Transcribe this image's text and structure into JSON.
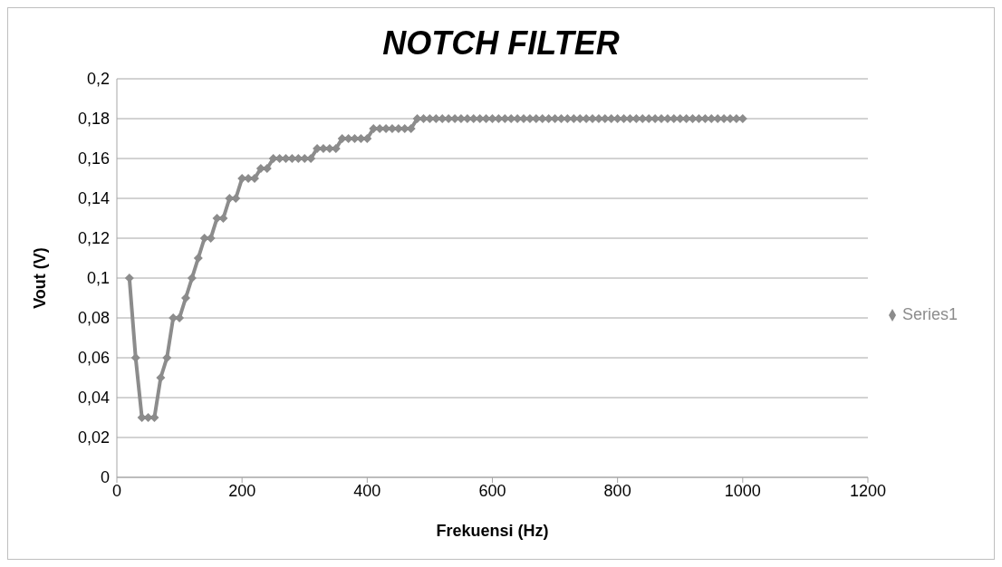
{
  "chart_data": {
    "type": "line",
    "title": "NOTCH FILTER",
    "xlabel": "Frekuensi (Hz)",
    "ylabel": "Vout (V)",
    "x": [
      20,
      30,
      40,
      50,
      60,
      70,
      80,
      90,
      100,
      110,
      120,
      130,
      140,
      150,
      160,
      170,
      180,
      190,
      200,
      210,
      220,
      230,
      240,
      250,
      260,
      270,
      280,
      290,
      300,
      310,
      320,
      330,
      340,
      350,
      360,
      370,
      380,
      390,
      400,
      410,
      420,
      430,
      440,
      450,
      460,
      470,
      480,
      490,
      500,
      510,
      520,
      530,
      540,
      550,
      560,
      570,
      580,
      590,
      600,
      610,
      620,
      630,
      640,
      650,
      660,
      670,
      680,
      690,
      700,
      710,
      720,
      730,
      740,
      750,
      760,
      770,
      780,
      790,
      800,
      810,
      820,
      830,
      840,
      850,
      860,
      870,
      880,
      890,
      900,
      910,
      920,
      930,
      940,
      950,
      960,
      970,
      980,
      990,
      1000
    ],
    "series": [
      {
        "name": "Series1",
        "color": "#8c8c8c",
        "values": [
          0.1,
          0.06,
          0.03,
          0.03,
          0.03,
          0.05,
          0.06,
          0.08,
          0.08,
          0.09,
          0.1,
          0.11,
          0.12,
          0.12,
          0.13,
          0.13,
          0.14,
          0.14,
          0.15,
          0.15,
          0.15,
          0.155,
          0.155,
          0.16,
          0.16,
          0.16,
          0.16,
          0.16,
          0.16,
          0.16,
          0.165,
          0.165,
          0.165,
          0.165,
          0.17,
          0.17,
          0.17,
          0.17,
          0.17,
          0.175,
          0.175,
          0.175,
          0.175,
          0.175,
          0.175,
          0.175,
          0.18,
          0.18,
          0.18,
          0.18,
          0.18,
          0.18,
          0.18,
          0.18,
          0.18,
          0.18,
          0.18,
          0.18,
          0.18,
          0.18,
          0.18,
          0.18,
          0.18,
          0.18,
          0.18,
          0.18,
          0.18,
          0.18,
          0.18,
          0.18,
          0.18,
          0.18,
          0.18,
          0.18,
          0.18,
          0.18,
          0.18,
          0.18,
          0.18,
          0.18,
          0.18,
          0.18,
          0.18,
          0.18,
          0.18,
          0.18,
          0.18,
          0.18,
          0.18,
          0.18,
          0.18,
          0.18,
          0.18,
          0.18,
          0.18,
          0.18,
          0.18,
          0.18,
          0.18
        ]
      }
    ],
    "xlim": [
      0,
      1200
    ],
    "xticks": [
      0,
      200,
      400,
      600,
      800,
      1000,
      1200
    ],
    "ylim": [
      0,
      0.2
    ],
    "yticks": [
      0,
      {
        "value": 0.02,
        "label": "0,02"
      },
      {
        "value": 0.04,
        "label": "0,04"
      },
      {
        "value": 0.06,
        "label": "0,06"
      },
      {
        "value": 0.08,
        "label": "0,08"
      },
      {
        "value": 0.1,
        "label": "0,1"
      },
      {
        "value": 0.12,
        "label": "0,12"
      },
      {
        "value": 0.14,
        "label": "0,14"
      },
      {
        "value": 0.16,
        "label": "0,16"
      },
      {
        "value": 0.18,
        "label": "0,18"
      },
      {
        "value": 0.2,
        "label": "0,2"
      }
    ],
    "grid": "y",
    "legend": "right",
    "marker": "diamond",
    "line_style": "solid"
  }
}
